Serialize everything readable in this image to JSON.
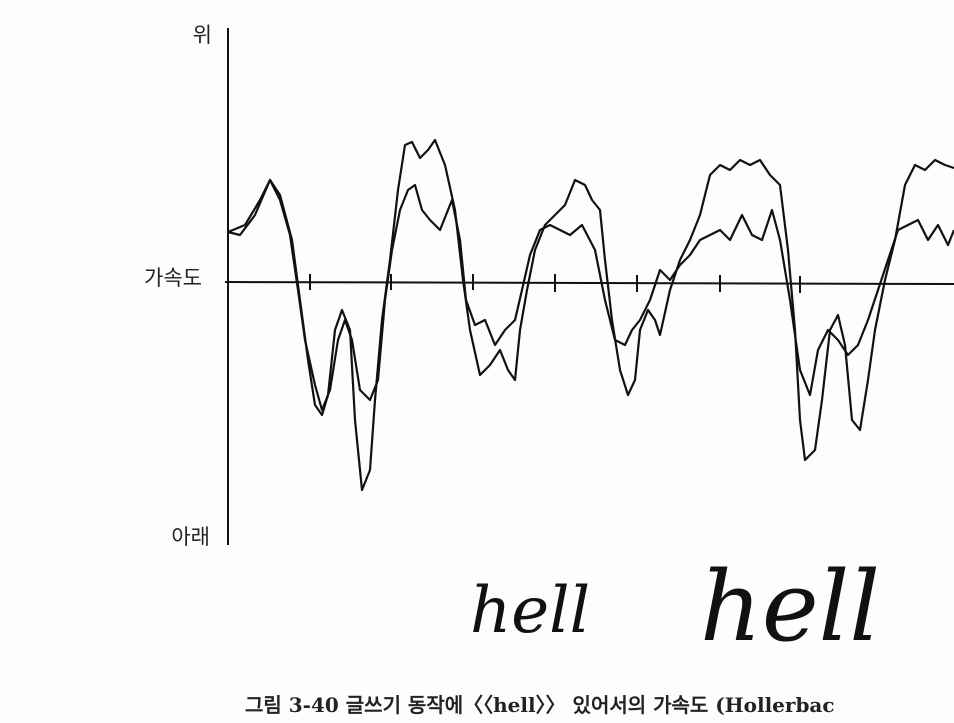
{
  "figure": {
    "axis_labels": {
      "top": "위",
      "middle": "가속도",
      "bottom": "아래"
    },
    "handwriting": [
      "hell",
      "hell"
    ],
    "caption": "그림 3-40 글쓰기 동작에〈〈hell〉〉 있어서의 가속도 (Hollerbac"
  }
}
